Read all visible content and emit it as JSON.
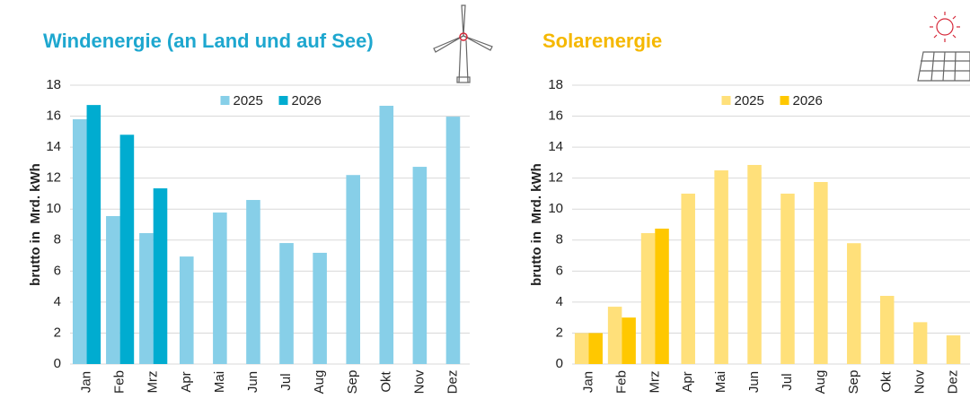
{
  "chart_data": [
    {
      "type": "bar",
      "title": "Windenergie (an Land und auf See)",
      "title_color": "#1ea7cf",
      "y_label": "brutto in  Mrd. kWh",
      "categories": [
        "Jan",
        "Feb",
        "Mrz",
        "Apr",
        "Mai",
        "Jun",
        "Jul",
        "Aug",
        "Sep",
        "Okt",
        "Nov",
        "Dez"
      ],
      "series": [
        {
          "name": "2025",
          "color": "#87cfe8",
          "values": [
            15.8,
            9.55,
            8.45,
            6.94,
            9.78,
            10.59,
            7.81,
            7.18,
            12.2,
            16.67,
            12.73,
            15.97
          ]
        },
        {
          "name": "2026",
          "color": "#00acd0",
          "values": [
            16.72,
            14.8,
            11.34,
            null,
            null,
            null,
            null,
            null,
            null,
            null,
            null,
            null
          ]
        }
      ],
      "ylim": [
        0,
        18
      ],
      "yticks": [
        0,
        2,
        4,
        6,
        8,
        10,
        12,
        14,
        16,
        18
      ],
      "grid": true,
      "legend": "top"
    },
    {
      "type": "bar",
      "title": "Solarenergie",
      "title_color": "#f5b800",
      "y_label": "brutto in  Mrd. kWh",
      "categories": [
        "Jan",
        "Feb",
        "Mrz",
        "Apr",
        "Mai",
        "Jun",
        "Jul",
        "Aug",
        "Sep",
        "Okt",
        "Nov",
        "Dez"
      ],
      "series": [
        {
          "name": "2025",
          "color": "#ffe07a",
          "values": [
            2.0,
            3.7,
            8.45,
            11.0,
            12.5,
            12.85,
            11.0,
            11.75,
            7.8,
            4.4,
            2.7,
            1.85
          ]
        },
        {
          "name": "2026",
          "color": "#ffc800",
          "values": [
            2.0,
            3.0,
            8.74,
            null,
            null,
            null,
            null,
            null,
            null,
            null,
            null,
            null
          ]
        }
      ],
      "ylim": [
        0,
        18
      ],
      "yticks": [
        0,
        2,
        4,
        6,
        8,
        10,
        12,
        14,
        16,
        18
      ],
      "grid": true,
      "legend": "top"
    }
  ]
}
